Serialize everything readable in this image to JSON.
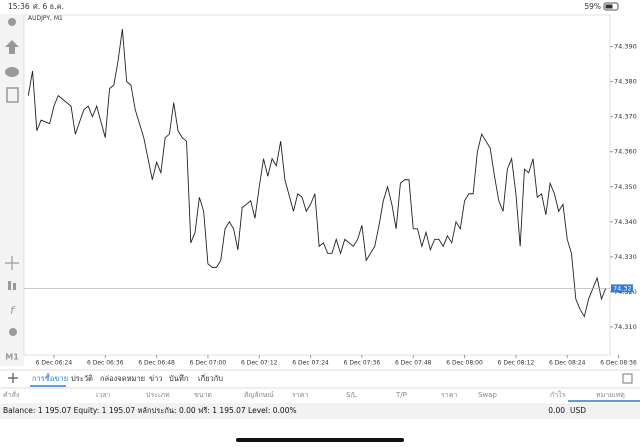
{
  "status_bar": {
    "time": "15:36",
    "date": "ศ. 6 ธ.ค.",
    "battery": "59%"
  },
  "toolbar": {
    "timeframe": "M1"
  },
  "chart_data": {
    "type": "line",
    "title": "AUDJPY, M1",
    "color": "#222222",
    "x": [
      378,
      379,
      380,
      381,
      383,
      384,
      385,
      387,
      388,
      389,
      391,
      392,
      393,
      394,
      396,
      397,
      398,
      399,
      400,
      401,
      402,
      403,
      405,
      406,
      407,
      408,
      409,
      410,
      411,
      412,
      413,
      414,
      415,
      416,
      417,
      418,
      419,
      420,
      421,
      422,
      423,
      424,
      425,
      426,
      427,
      428,
      430,
      431,
      432,
      433,
      434,
      435,
      436,
      437,
      438,
      440,
      441,
      442,
      443,
      444,
      445,
      446,
      447,
      448,
      449,
      450,
      451,
      452,
      454,
      455,
      456,
      457,
      458,
      459,
      460,
      461,
      462,
      463,
      464,
      465,
      466,
      467,
      468,
      469,
      470,
      471,
      472,
      473,
      474,
      475,
      476,
      477,
      478,
      479,
      480,
      481,
      482,
      483,
      484,
      485,
      486,
      487,
      488,
      489,
      490,
      491,
      492,
      493,
      494,
      495,
      496,
      497,
      498,
      499,
      500,
      501,
      502,
      503,
      504,
      505,
      506,
      507,
      508,
      509,
      510,
      511,
      512,
      513
    ],
    "values": [
      74.376,
      74.383,
      74.366,
      74.369,
      74.368,
      74.373,
      74.376,
      74.374,
      74.373,
      74.365,
      74.372,
      74.373,
      74.37,
      74.373,
      74.364,
      74.378,
      74.379,
      74.386,
      74.395,
      74.38,
      74.379,
      74.372,
      74.364,
      74.358,
      74.352,
      74.357,
      74.354,
      74.364,
      74.365,
      74.374,
      74.366,
      74.364,
      74.363,
      74.334,
      74.337,
      74.347,
      74.343,
      74.328,
      74.327,
      74.327,
      74.329,
      74.338,
      74.34,
      74.338,
      74.332,
      74.344,
      74.346,
      74.341,
      74.35,
      74.358,
      74.353,
      74.358,
      74.356,
      74.363,
      74.352,
      74.343,
      74.348,
      74.347,
      74.343,
      74.345,
      74.348,
      74.333,
      74.334,
      74.331,
      74.331,
      74.335,
      74.331,
      74.335,
      74.333,
      74.335,
      74.339,
      74.329,
      74.331,
      74.333,
      74.339,
      74.346,
      74.35,
      74.345,
      74.338,
      74.351,
      74.352,
      74.352,
      74.338,
      74.338,
      74.333,
      74.337,
      74.332,
      74.335,
      74.335,
      74.333,
      74.336,
      74.334,
      74.34,
      74.338,
      74.346,
      74.348,
      74.348,
      74.36,
      74.365,
      74.363,
      74.361,
      74.353,
      74.346,
      74.343,
      74.355,
      74.358,
      74.348,
      74.333,
      74.355,
      74.354,
      74.358,
      74.347,
      74.348,
      74.342,
      74.351,
      74.348,
      74.343,
      74.345,
      74.335,
      74.331,
      74.318,
      74.315,
      74.313,
      74.318,
      74.321,
      74.324,
      74.318,
      74.321
    ],
    "xlim": [
      377,
      514
    ],
    "xticks": [
      {
        "value": 384,
        "label": "6 Dec 06:24"
      },
      {
        "value": 396,
        "label": "6 Dec 06:36"
      },
      {
        "value": 408,
        "label": "6 Dec 06:48"
      },
      {
        "value": 420,
        "label": "6 Dec 07:00"
      },
      {
        "value": 432,
        "label": "6 Dec 07:12"
      },
      {
        "value": 444,
        "label": "6 Dec 07:24"
      },
      {
        "value": 456,
        "label": "6 Dec 07:36"
      },
      {
        "value": 468,
        "label": "6 Dec 07:48"
      },
      {
        "value": 480,
        "label": "6 Dec 08:00"
      },
      {
        "value": 492,
        "label": "6 Dec 08:12"
      },
      {
        "value": 504,
        "label": "6 Dec 08:24"
      },
      {
        "value": 516,
        "label": "6 Dec 08:36"
      }
    ],
    "ylim": [
      74.302,
      74.399
    ],
    "yticks": [
      {
        "value": 74.31,
        "label": "74.310"
      },
      {
        "value": 74.32,
        "label": "74.320"
      },
      {
        "value": 74.33,
        "label": "74.330"
      },
      {
        "value": 74.34,
        "label": "74.340"
      },
      {
        "value": 74.35,
        "label": "74.350"
      },
      {
        "value": 74.36,
        "label": "74.360"
      },
      {
        "value": 74.37,
        "label": "74.370"
      },
      {
        "value": 74.38,
        "label": "74.380"
      },
      {
        "value": 74.39,
        "label": "74.390"
      }
    ],
    "price_line": 74.321,
    "grid": false
  },
  "tabs": [
    "การซื้อขาย",
    "ประวัติ",
    "กล่องจดหมาย",
    "ข่าว",
    "บันทึก",
    "เกี่ยวกับ"
  ],
  "columns": [
    "คำสั่ง",
    "เวลา",
    "ประเภท",
    "ขนาด",
    "สัญลักษณ์",
    "ราคา",
    "S/L",
    "T/P",
    "ราคา",
    "Swap",
    "กำไร",
    "หมายเหตุ"
  ],
  "account": {
    "summary": "Balance: 1 195.07 Equity: 1 195.07 หลักประกัน: 0.00 ฟรี: 1 195.07 Level: 0.00%",
    "profit": "0.00",
    "currency": "USD"
  }
}
